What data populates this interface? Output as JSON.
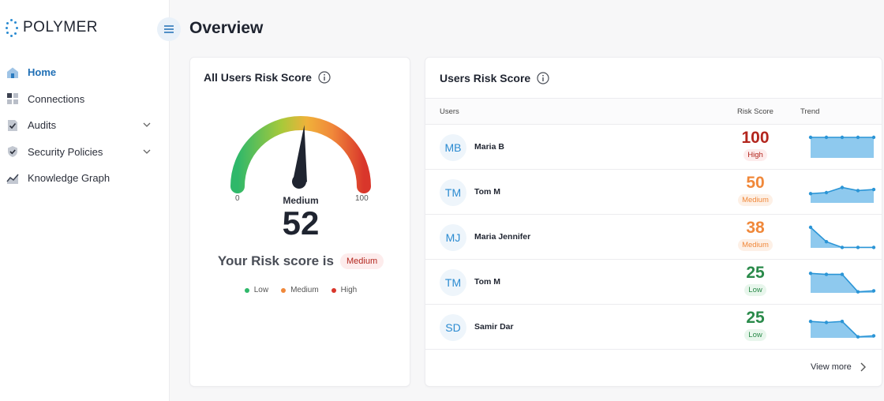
{
  "app": {
    "logo_text": "POLYMER"
  },
  "sidebar": {
    "items": [
      {
        "label": "Home",
        "icon": "home-icon",
        "active": true,
        "has_chevron": false
      },
      {
        "label": "Connections",
        "icon": "grid-icon",
        "active": false,
        "has_chevron": false
      },
      {
        "label": "Audits",
        "icon": "audit-check-icon",
        "active": false,
        "has_chevron": true
      },
      {
        "label": "Security Policies",
        "icon": "shield-check-icon",
        "active": false,
        "has_chevron": true
      },
      {
        "label": "Knowledge Graph",
        "icon": "graph-icon",
        "active": false,
        "has_chevron": false
      }
    ]
  },
  "header": {
    "title": "Overview"
  },
  "all_users_card": {
    "title": "All Users Risk Score",
    "gauge": {
      "min": "0",
      "max": "100",
      "value": 52,
      "status": "Medium"
    },
    "score": "52",
    "your_risk_text": "Your Risk score is",
    "your_risk_badge": "Medium",
    "legend": [
      {
        "label": "Low",
        "color": "#2fb86a"
      },
      {
        "label": "Medium",
        "color": "#f0883a"
      },
      {
        "label": "High",
        "color": "#d9362b"
      }
    ]
  },
  "users_card": {
    "title": "Users Risk Score",
    "columns": {
      "users": "Users",
      "risk": "Risk Score",
      "trend": "Trend"
    },
    "rows": [
      {
        "initials": "MB",
        "name": "Maria B",
        "score": "100",
        "level": "High",
        "trend": [
          1,
          1,
          1,
          1,
          1
        ]
      },
      {
        "initials": "TM",
        "name": "Tom M",
        "score": "50",
        "level": "Medium",
        "trend": [
          0.45,
          0.5,
          0.75,
          0.6,
          0.65
        ]
      },
      {
        "initials": "MJ",
        "name": "Maria Jennifer",
        "score": "38",
        "level": "Medium",
        "trend": [
          1,
          0.3,
          0.02,
          0.02,
          0.02
        ]
      },
      {
        "initials": "TM",
        "name": "Tom M",
        "score": "25",
        "level": "Low",
        "trend": [
          0.95,
          0.9,
          0.9,
          0.05,
          0.1
        ]
      },
      {
        "initials": "SD",
        "name": "Samir Dar",
        "score": "25",
        "level": "Low",
        "trend": [
          0.8,
          0.75,
          0.8,
          0.05,
          0.1
        ]
      }
    ],
    "view_more": "View more"
  },
  "colors": {
    "high": "#b3261e",
    "high_bg": "#fdecec",
    "medium": "#f0883a",
    "medium_bg": "#fdf0e6",
    "low": "#2a8a4a",
    "low_bg": "#e8f6ec",
    "trend_line": "#2b95d6",
    "trend_fill": "#8ec9ee"
  }
}
